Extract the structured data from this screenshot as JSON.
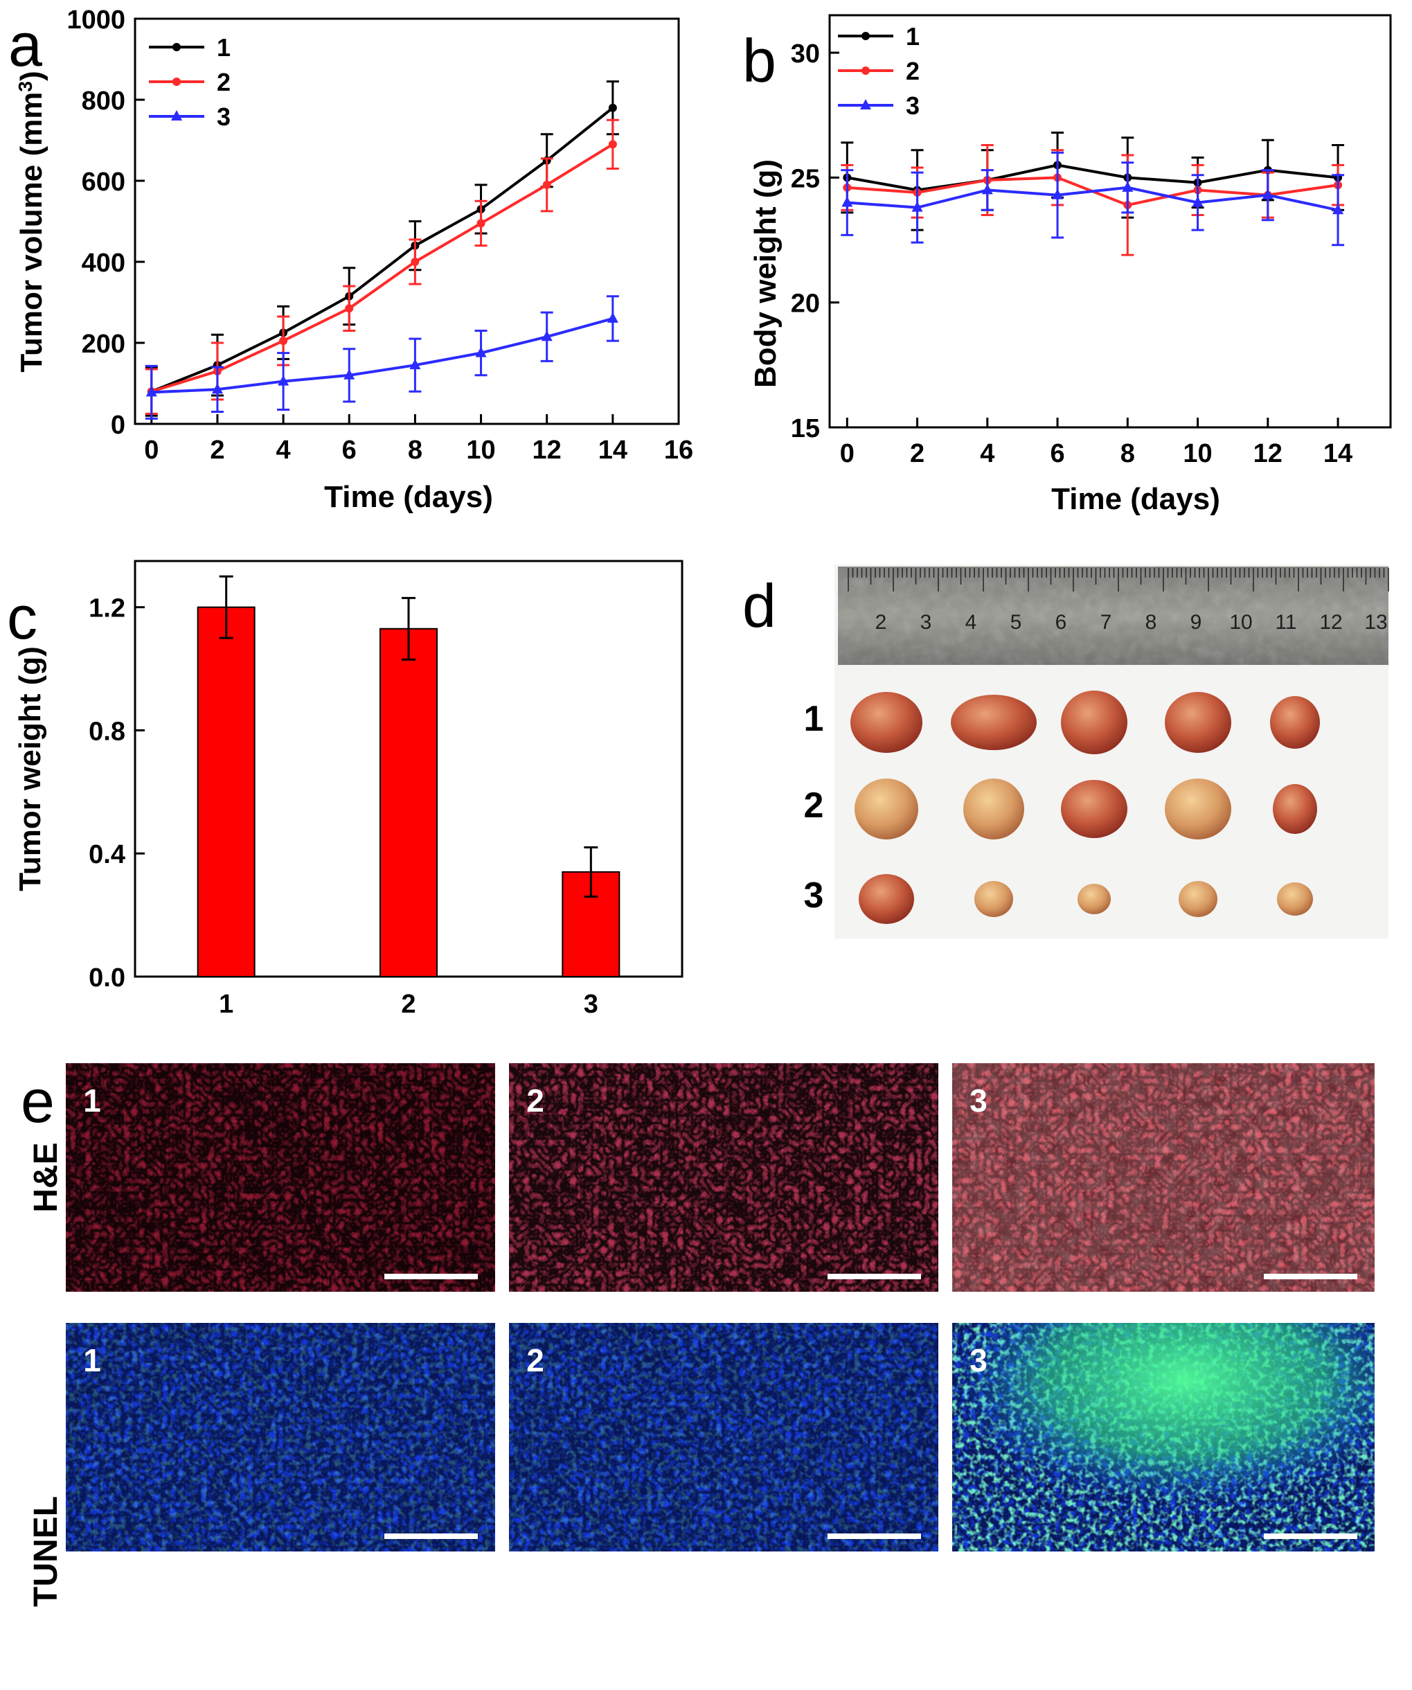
{
  "panels": {
    "a": {
      "letter": "a"
    },
    "b": {
      "letter": "b"
    },
    "c": {
      "letter": "c"
    },
    "d": {
      "letter": "d",
      "ruler_numbers": [
        "2",
        "3",
        "4",
        "5",
        "6",
        "7",
        "8",
        "9",
        "10",
        "11",
        "12",
        "13"
      ],
      "row_labels": [
        "1",
        "2",
        "3"
      ]
    },
    "e": {
      "letter": "e",
      "row_labels": [
        "H&E",
        "TUNEL"
      ],
      "image_labels": [
        "1",
        "2",
        "3"
      ]
    }
  },
  "colors": {
    "series1": "#000000",
    "series2": "#ff2a2a",
    "series3": "#2b2bff",
    "bar": "#ff0000"
  },
  "chart_data": [
    {
      "id": "a",
      "type": "line",
      "xlabel": "Time (days)",
      "ylabel": "Tumor volume (mm³)",
      "xlim": [
        -0.5,
        16
      ],
      "ylim": [
        0,
        1000
      ],
      "xticks": [
        0,
        2,
        4,
        6,
        8,
        10,
        12,
        14,
        16
      ],
      "yticks": [
        0,
        200,
        400,
        600,
        800,
        1000
      ],
      "x": [
        0,
        2,
        4,
        6,
        8,
        10,
        12,
        14
      ],
      "legend": "top-left",
      "series": [
        {
          "name": "1",
          "marker": "circle",
          "values": [
            80,
            145,
            225,
            315,
            440,
            530,
            650,
            780
          ],
          "errors": [
            60,
            75,
            65,
            70,
            60,
            60,
            65,
            65
          ]
        },
        {
          "name": "2",
          "marker": "circle",
          "values": [
            80,
            130,
            205,
            285,
            400,
            495,
            590,
            690
          ],
          "errors": [
            55,
            70,
            60,
            55,
            55,
            55,
            65,
            60
          ]
        },
        {
          "name": "3",
          "marker": "triangle",
          "values": [
            78,
            85,
            105,
            120,
            145,
            175,
            215,
            260
          ],
          "errors": [
            65,
            55,
            70,
            65,
            65,
            55,
            60,
            55
          ]
        }
      ]
    },
    {
      "id": "b",
      "type": "line",
      "xlabel": "Time (days)",
      "ylabel": "Body weight (g)",
      "xlim": [
        -0.5,
        15.5
      ],
      "ylim": [
        15,
        31.5
      ],
      "xticks": [
        0,
        2,
        4,
        6,
        8,
        10,
        12,
        14
      ],
      "yticks": [
        15,
        20,
        25,
        30
      ],
      "x": [
        0,
        2,
        4,
        6,
        8,
        10,
        12,
        14
      ],
      "legend": "top-left",
      "series": [
        {
          "name": "1",
          "marker": "circle",
          "values": [
            25.0,
            24.5,
            24.9,
            25.5,
            25.0,
            24.8,
            25.3,
            25.0
          ],
          "errors": [
            1.4,
            1.6,
            1.2,
            1.3,
            1.6,
            1.0,
            1.2,
            1.3
          ]
        },
        {
          "name": "2",
          "marker": "circle",
          "values": [
            24.6,
            24.4,
            24.9,
            25.0,
            23.9,
            24.5,
            24.3,
            24.7
          ],
          "errors": [
            0.9,
            1.0,
            1.4,
            1.1,
            2.0,
            1.0,
            0.9,
            0.8
          ]
        },
        {
          "name": "3",
          "marker": "triangle",
          "values": [
            24.0,
            23.8,
            24.5,
            24.3,
            24.6,
            24.0,
            24.3,
            23.7
          ],
          "errors": [
            1.3,
            1.4,
            0.8,
            1.7,
            1.0,
            1.1,
            1.0,
            1.4
          ]
        }
      ]
    },
    {
      "id": "c",
      "type": "bar",
      "xlabel": "",
      "ylabel": "Tumor weight (g)",
      "categories": [
        "1",
        "2",
        "3"
      ],
      "values": [
        1.2,
        1.13,
        0.34
      ],
      "errors": [
        0.1,
        0.1,
        0.08
      ],
      "ylim": [
        0,
        1.35
      ],
      "yticks": [
        "0.0",
        "0.4",
        "0.8",
        "1.2"
      ]
    }
  ]
}
